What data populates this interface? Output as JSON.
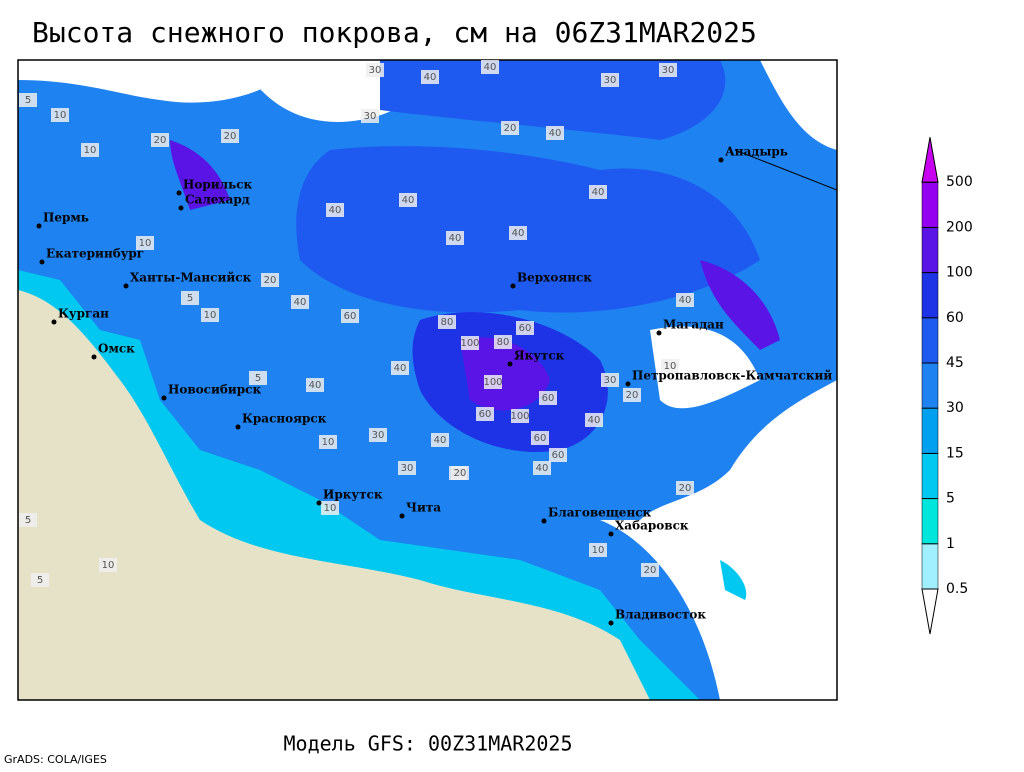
{
  "title": "Высота снежного покрова, см на 06Z31MAR2025",
  "footer": {
    "model": "Модель GFS: 00Z31MAR2025",
    "credit": "GrADS: COLA/IGES"
  },
  "legend": {
    "levels": [
      0.5,
      1,
      5,
      15,
      30,
      45,
      60,
      100,
      200,
      500
    ],
    "colors": [
      "#ffffff",
      "#a0f0ff",
      "#00e6dc",
      "#00c8f0",
      "#00a0f0",
      "#1e82f0",
      "#1e5af0",
      "#1e32e6",
      "#5a14e6",
      "#9600f0",
      "#c800f0"
    ]
  },
  "cities": [
    "Норильск",
    "Салехард",
    "Пермь",
    "Екатеринбург",
    "Ханты-Мансийск",
    "Курган",
    "Омск",
    "Новосибирск",
    "Красноярск",
    "Иркутск",
    "Чита",
    "Благовещенск",
    "Хабаровск",
    "Владивосток",
    "Якутск",
    "Верхоянск",
    "Магадан",
    "Петропавловск-Камчатский",
    "Анадырь"
  ],
  "contour_labels": [
    30,
    40,
    40,
    30,
    30,
    20,
    30,
    40,
    20,
    10,
    5,
    10,
    20,
    40,
    40,
    40,
    40,
    40,
    20,
    10,
    5,
    10,
    40,
    60,
    80,
    100,
    80,
    60,
    40,
    100,
    60,
    100,
    60,
    40,
    30,
    20,
    10,
    5,
    40,
    60,
    30,
    20,
    10,
    20,
    5,
    10,
    40,
    20,
    10,
    5,
    30,
    40,
    60,
    40,
    20,
    10
  ]
}
